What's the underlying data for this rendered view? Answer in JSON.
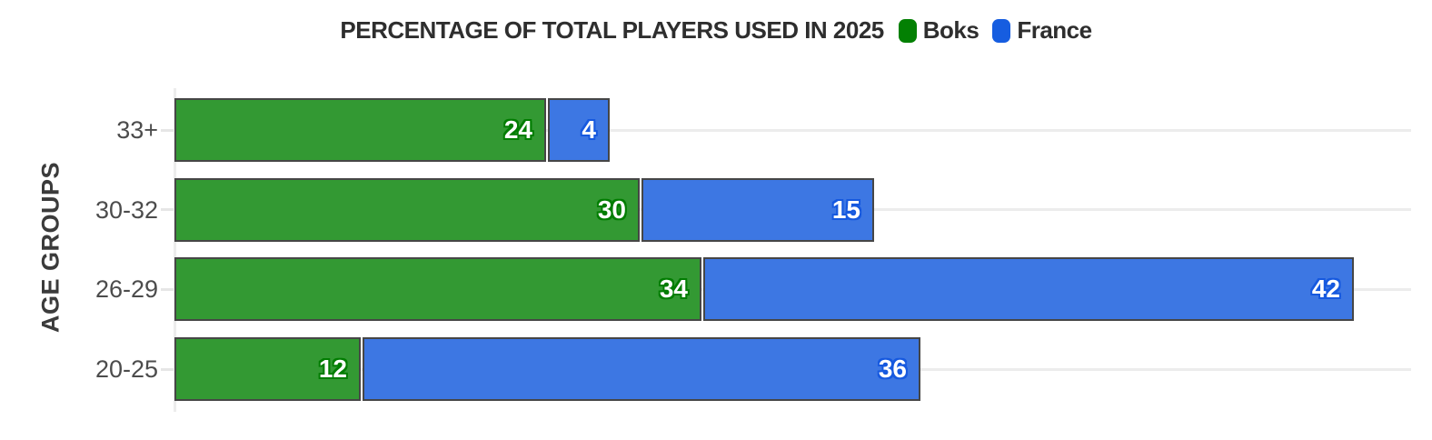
{
  "header": {
    "title": "PERCENTAGE OF TOTAL PLAYERS USED IN 2025"
  },
  "legend": [
    {
      "label": "Boks",
      "color": "#038003"
    },
    {
      "label": "France",
      "color": "#165de0"
    }
  ],
  "colors": {
    "bar_green": "#339933",
    "bar_blue": "#3d77e3",
    "bar_border": "#464646",
    "gridline": "#ececec",
    "title_text": "#2e2e2e",
    "category_text": "#4c4c4c",
    "value_text": "#ffffff",
    "green_label_halo": "#027d02",
    "blue_label_halo": "#1659df"
  },
  "chart_data": {
    "type": "bar",
    "orientation": "horizontal",
    "stacked": true,
    "title": "PERCENTAGE OF TOTAL PLAYERS USED IN 2025",
    "xlabel": "",
    "ylabel": "AGE GROUPS",
    "categories": [
      "33+",
      "30-32",
      "26-29",
      "20-25"
    ],
    "series": [
      {
        "name": "Boks",
        "color": "#339933",
        "halo": "#027d02",
        "values": [
          24,
          30,
          34,
          12
        ]
      },
      {
        "name": "France",
        "color": "#3d77e3",
        "halo": "#1659df",
        "values": [
          4,
          15,
          42,
          36
        ]
      }
    ],
    "xlim": [
      0,
      76
    ],
    "grid": "horizontal-per-category",
    "legend_position": "top-inline-with-title",
    "data_labels": "inside-end, white bold with series-color outline"
  }
}
